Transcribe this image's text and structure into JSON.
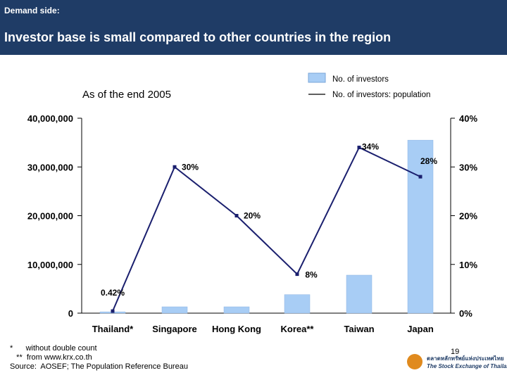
{
  "header": {
    "kicker": "Demand side:",
    "headline": "Investor base is small compared to other countries in the region"
  },
  "chart_data": {
    "type": "bar+line",
    "subtitle": "As of the end 2005",
    "categories": [
      "Thailand*",
      "Singapore",
      "Hong Kong",
      "Korea**",
      "Taiwan",
      "Japan"
    ],
    "series": [
      {
        "name": "No. of investors",
        "type": "bar",
        "axis": "left",
        "color": "#a8cdf5",
        "values": [
          270000,
          1300000,
          1300000,
          3800000,
          7800000,
          35500000
        ]
      },
      {
        "name": "No. of investors: population",
        "type": "line",
        "axis": "right",
        "color": "#1a1f6e",
        "values": [
          0.42,
          30,
          20,
          8,
          34,
          28
        ],
        "labels": [
          "0.42%",
          "30%",
          "20%",
          "8%",
          "34%",
          "28%"
        ]
      }
    ],
    "y_left": {
      "ticks": [
        "0",
        "10,000,000",
        "20,000,000",
        "30,000,000",
        "40,000,000"
      ],
      "range": [
        0,
        40000000
      ]
    },
    "y_right": {
      "ticks": [
        "0%",
        "10%",
        "20%",
        "30%",
        "40%"
      ],
      "range": [
        0,
        40
      ]
    },
    "legend_position": "top-right"
  },
  "footnotes": [
    "*      without double count",
    "   **  from www.krx.co.th",
    "Source:  AOSEF; The Population Reference Bureau"
  ],
  "page_number": "19",
  "logo": {
    "thai_text": "ตลาดหลักทรัพย์แห่งประเทศไทย",
    "english_text": "The Stock Exchange of Thailand"
  },
  "colors": {
    "header_bg": "#1f3c66",
    "bar": "#a8cdf5",
    "line": "#1a1f6e"
  }
}
